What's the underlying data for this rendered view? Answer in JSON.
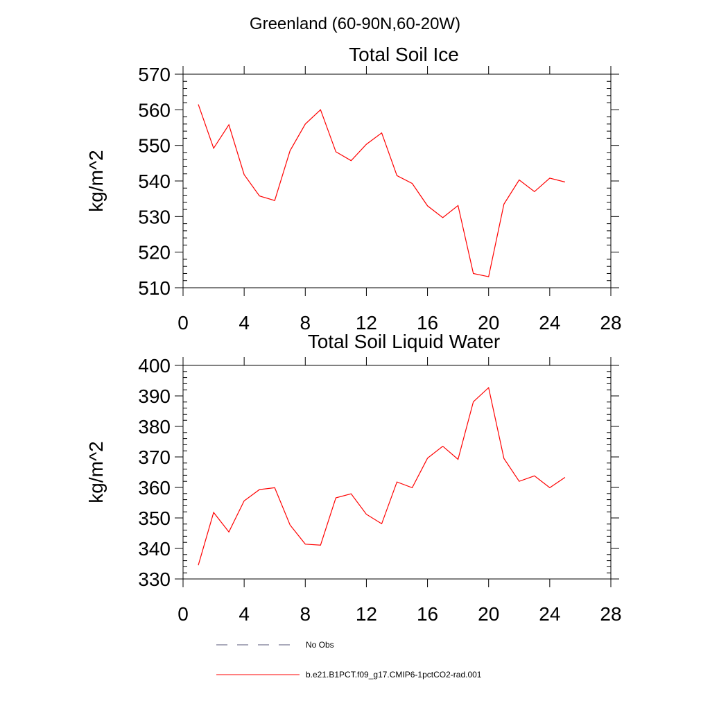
{
  "figure": {
    "main_title": "Greenland (60-90N,60-20W)"
  },
  "chart_data": [
    {
      "type": "line",
      "title": "Total Soil Ice",
      "xlabel": "",
      "ylabel": "kg/m^2",
      "xlim": [
        0,
        28
      ],
      "ylim": [
        510,
        570
      ],
      "xticks": [
        0,
        4,
        8,
        12,
        16,
        20,
        24,
        28
      ],
      "yticks": [
        510,
        520,
        530,
        540,
        550,
        560,
        570
      ],
      "grid": false,
      "series": [
        {
          "color": "#ff0000",
          "x": [
            1,
            2,
            3,
            4,
            5,
            6,
            7,
            8,
            9,
            10,
            11,
            12,
            13,
            14,
            15,
            16,
            17,
            18,
            19,
            20,
            21,
            22,
            23,
            24,
            25
          ],
          "values": [
            561.5,
            549.2,
            555.8,
            541.8,
            535.8,
            534.5,
            548.5,
            556,
            560,
            548.2,
            545.7,
            550.3,
            553.5,
            541.5,
            539.3,
            533,
            529.7,
            533.1,
            514,
            513.1,
            533.5,
            540.3,
            537,
            540.8,
            539.7
          ]
        }
      ]
    },
    {
      "type": "line",
      "title": "Total Soil Liquid Water",
      "xlabel": "",
      "ylabel": "kg/m^2",
      "xlim": [
        0,
        28
      ],
      "ylim": [
        330,
        400
      ],
      "xticks": [
        0,
        4,
        8,
        12,
        16,
        20,
        24,
        28
      ],
      "yticks": [
        330,
        340,
        350,
        360,
        370,
        380,
        390,
        400
      ],
      "grid": false,
      "series": [
        {
          "color": "#ff0000",
          "x": [
            1,
            2,
            3,
            4,
            5,
            6,
            7,
            8,
            9,
            10,
            11,
            12,
            13,
            14,
            15,
            16,
            17,
            18,
            19,
            20,
            21,
            22,
            23,
            24,
            25
          ],
          "values": [
            334.5,
            351.8,
            345.4,
            355.6,
            359.3,
            359.9,
            347.7,
            341.4,
            341.1,
            356.6,
            357.9,
            351.2,
            348.1,
            361.8,
            359.9,
            369.6,
            373.5,
            369.2,
            388.1,
            392.7,
            369.5,
            362,
            363.8,
            359.9,
            363.3
          ]
        }
      ]
    }
  ],
  "legend": {
    "placement": "bottom-center",
    "entries": [
      {
        "label": "No Obs",
        "color": "#555577",
        "style": "dashed"
      },
      {
        "label": "b.e21.B1PCT.f09_g17.CMIP6-1pctCO2-rad.001",
        "color": "#ff0000",
        "style": "solid"
      }
    ]
  }
}
